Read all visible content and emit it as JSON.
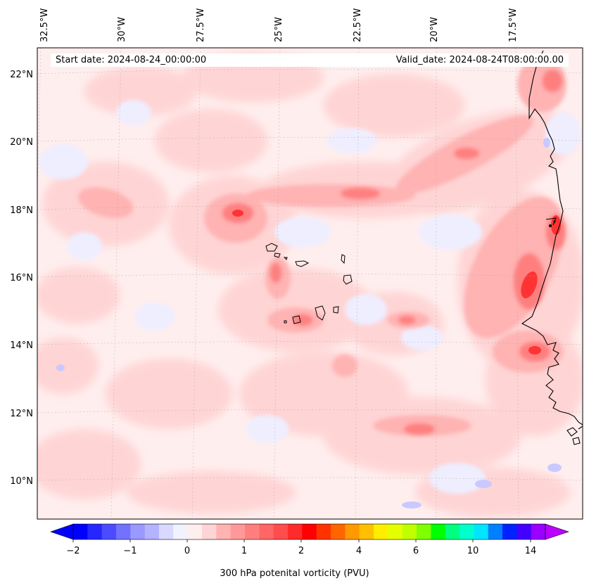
{
  "map": {
    "start_date": "Start date: 2024-08-24_00:00:00",
    "valid_date": "Valid_date: 2024-08-24T08:00:00.00",
    "variable_label": "300 hPa potenital vorticity (PVU)",
    "lon_labels": [
      "32.5°W",
      "30°W",
      "27.5°W",
      "25°W",
      "22.5°W",
      "20°W",
      "17.5°W"
    ],
    "lat_labels": [
      "22°N",
      "20°N",
      "18°N",
      "16°N",
      "14°N",
      "12°N",
      "10°N"
    ],
    "gridlines": true,
    "coastlines": true
  },
  "colorbar": {
    "tick_labels": [
      "−2",
      "−1",
      "0",
      "1",
      "2",
      "4",
      "6",
      "10",
      "14"
    ],
    "extend": "both",
    "colors": [
      "#0000ff",
      "#2626ff",
      "#4c4cff",
      "#7272ff",
      "#9999ff",
      "#b3b3ff",
      "#d9d9ff",
      "#f2f2ff",
      "#ffeeee",
      "#ffd4d4",
      "#ffb3b3",
      "#ff9999",
      "#ff7f7f",
      "#ff6666",
      "#ff4c4c",
      "#ff2b2b",
      "#ff0000",
      "#ff3300",
      "#ff6600",
      "#ff9900",
      "#ffc000",
      "#ffee00",
      "#e6ff00",
      "#c0ff00",
      "#7fff00",
      "#00ff00",
      "#00ff80",
      "#00ffcc",
      "#00e5ff",
      "#0080ff",
      "#0022ff",
      "#4400ff",
      "#9900ff"
    ],
    "under_color": "#0000ff",
    "over_color": "#bb00ff"
  }
}
